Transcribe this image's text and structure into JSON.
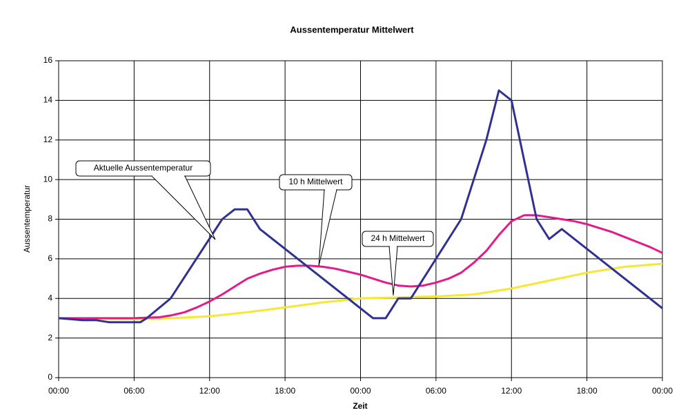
{
  "chart_data": {
    "type": "line",
    "title": "Aussentemperatur Mittelwert",
    "x_label": "Zeit",
    "y_label": "Aussentemperatur",
    "xlim": [
      0,
      48
    ],
    "xticks": [
      {
        "value": 0,
        "label": "00:00"
      },
      {
        "value": 6,
        "label": "06:00"
      },
      {
        "value": 12,
        "label": "12:00"
      },
      {
        "value": 18,
        "label": "18:00"
      },
      {
        "value": 24,
        "label": "00:00"
      },
      {
        "value": 30,
        "label": "06:00"
      },
      {
        "value": 36,
        "label": "12:00"
      },
      {
        "value": 42,
        "label": "18:00"
      },
      {
        "value": 48,
        "label": "00:00"
      }
    ],
    "ylim": [
      0,
      16
    ],
    "yticks": [
      0,
      2,
      4,
      6,
      8,
      10,
      12,
      14,
      16
    ],
    "grid": true,
    "series": [
      {
        "name": "Aktuelle Aussentemperatur",
        "color": "#2e3192",
        "x": [
          0,
          1.9,
          3,
          4,
          4.9,
          6.5,
          7,
          8.9,
          13,
          14,
          15,
          16,
          25,
          26,
          27,
          28,
          32,
          34,
          35,
          36,
          38,
          39,
          40,
          48
        ],
        "values": [
          3.0,
          2.9,
          2.9,
          2.8,
          2.8,
          2.8,
          3.0,
          4.0,
          8.0,
          8.5,
          8.5,
          7.5,
          3.0,
          3.0,
          4.0,
          4.0,
          8.0,
          12.0,
          14.5,
          14.0,
          8.0,
          7.0,
          7.5,
          3.5
        ]
      },
      {
        "name": "10 h Mittelwert",
        "color": "#e6198a",
        "x": [
          0,
          6,
          8,
          9,
          10,
          11,
          12,
          13,
          14,
          15,
          16,
          17,
          18,
          19,
          20,
          21,
          22,
          23,
          24,
          25,
          26,
          27,
          28,
          29,
          30,
          31,
          32,
          33,
          34,
          35,
          36,
          37,
          38,
          39,
          40,
          41,
          42,
          43,
          44,
          45,
          46,
          47,
          48
        ],
        "values": [
          3.0,
          3.0,
          3.05,
          3.15,
          3.3,
          3.55,
          3.85,
          4.2,
          4.6,
          5.0,
          5.25,
          5.45,
          5.6,
          5.65,
          5.65,
          5.6,
          5.5,
          5.35,
          5.2,
          5.0,
          4.8,
          4.65,
          4.6,
          4.65,
          4.8,
          5.0,
          5.3,
          5.8,
          6.4,
          7.2,
          7.9,
          8.2,
          8.2,
          8.1,
          8.0,
          7.9,
          7.75,
          7.55,
          7.35,
          7.1,
          6.85,
          6.6,
          6.3
        ]
      },
      {
        "name": "24 h Mittelwert",
        "color": "#f7e733",
        "x": [
          0,
          6,
          9,
          12,
          15,
          18,
          21,
          24,
          27,
          30,
          33,
          36,
          39,
          42,
          45,
          48
        ],
        "values": [
          3.0,
          2.95,
          3.0,
          3.1,
          3.3,
          3.55,
          3.8,
          4.0,
          4.05,
          4.1,
          4.2,
          4.5,
          4.9,
          5.3,
          5.6,
          5.75
        ]
      }
    ]
  }
}
